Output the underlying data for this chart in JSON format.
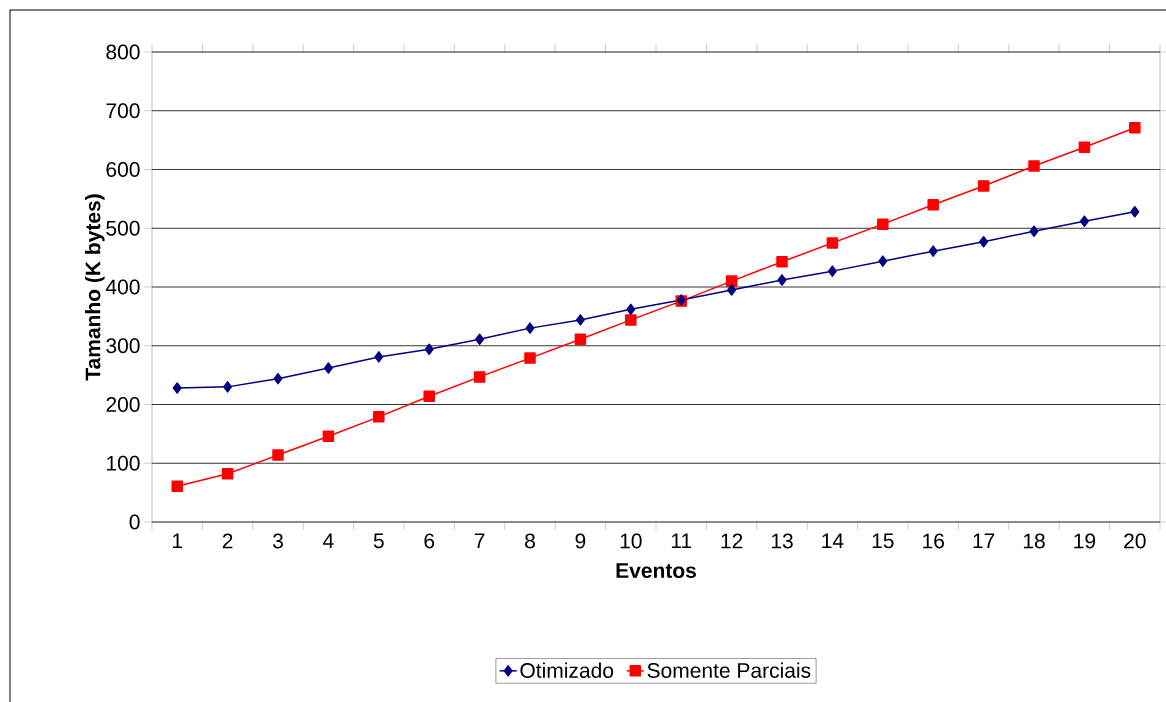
{
  "chart_data": {
    "type": "line",
    "xlabel": "Eventos",
    "ylabel": "Tamanho (K bytes)",
    "categories": [
      "1",
      "2",
      "3",
      "4",
      "5",
      "6",
      "7",
      "8",
      "9",
      "10",
      "11",
      "12",
      "13",
      "14",
      "15",
      "16",
      "17",
      "18",
      "19",
      "20"
    ],
    "series": [
      {
        "name": "Otimizado",
        "color": "#000080",
        "marker": "diamond",
        "values": [
          228,
          230,
          244,
          262,
          281,
          294,
          311,
          330,
          344,
          362,
          378,
          395,
          412,
          427,
          444,
          461,
          477,
          495,
          512,
          528
        ]
      },
      {
        "name": "Somente Parciais",
        "color": "#ff0000",
        "marker": "square",
        "values": [
          61,
          82,
          114,
          146,
          179,
          214,
          247,
          279,
          311,
          344,
          376,
          410,
          443,
          475,
          507,
          540,
          572,
          606,
          638,
          671
        ]
      }
    ],
    "ylim": [
      0,
      800
    ],
    "yticks": [
      0,
      100,
      200,
      300,
      400,
      500,
      600,
      700,
      800
    ],
    "grid": "y",
    "legend": "bottom"
  }
}
